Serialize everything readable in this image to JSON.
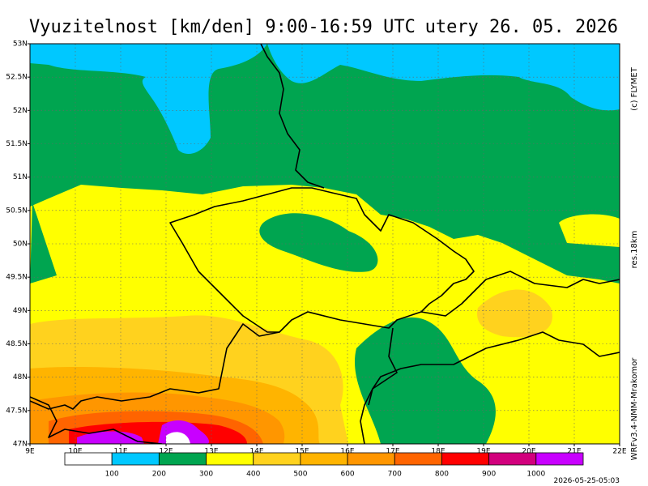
{
  "header": {
    "title": "Vyuzitelnost [km/den] 9:00-16:59 UTC",
    "date": "utery 26. 05. 2026"
  },
  "map": {
    "lon_labels": [
      "9E",
      "10E",
      "11E",
      "12E",
      "13E",
      "14E",
      "15E",
      "16E",
      "17E",
      "18E",
      "19E",
      "20E",
      "21E",
      "22E"
    ],
    "lat_labels": [
      "47N",
      "47.5N",
      "48N",
      "48.5N",
      "49N",
      "49.5N",
      "50N",
      "50.5N",
      "51N",
      "51.5N",
      "52N",
      "52.5N",
      "53N"
    ]
  },
  "legend": {
    "colors": [
      "#ffffff",
      "#00c8ff",
      "#00a550",
      "#ffff00",
      "#ffd21e",
      "#ffb400",
      "#ff9600",
      "#ff6400",
      "#ff0000",
      "#d2007d",
      "#c800ff"
    ],
    "labels": [
      "100",
      "200",
      "300",
      "400",
      "500",
      "600",
      "700",
      "800",
      "900",
      "1000"
    ]
  },
  "side": {
    "copyright": "(c) FLYMET",
    "resolution": "res.18km",
    "model": "WRFv3.4-NMM-Mrakomor",
    "timestamp": "2026-05-25-05:03"
  }
}
